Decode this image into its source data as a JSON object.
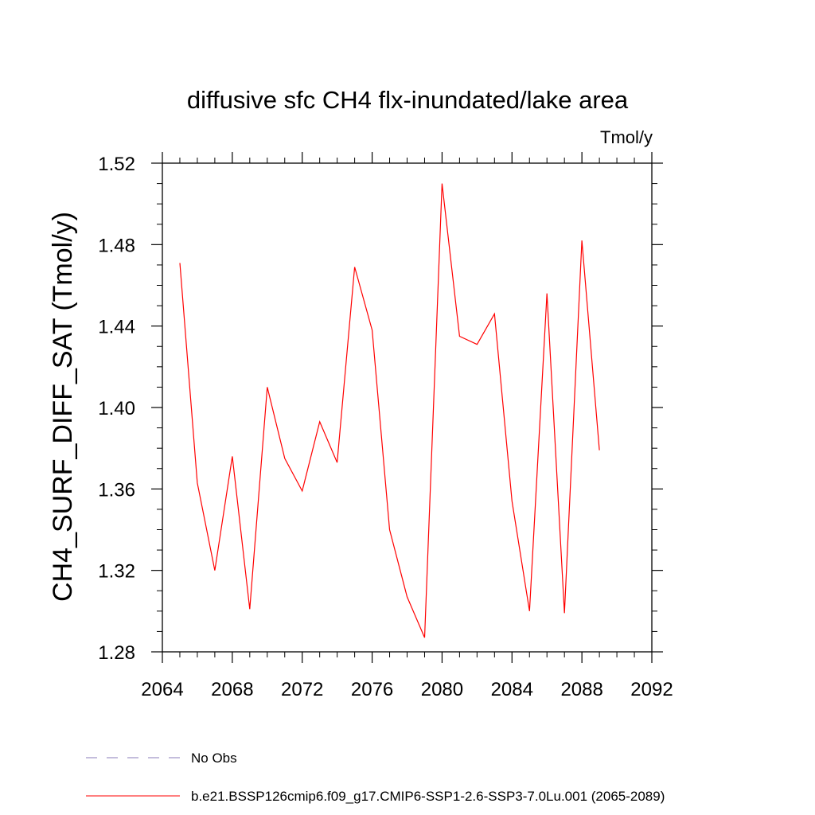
{
  "chart_data": {
    "type": "line",
    "title": "diffusive sfc CH4 flx-inundated/lake area",
    "units_label": "Tmol/y",
    "ylabel": "CH4_SURF_DIFF_SAT  (Tmol/y)",
    "xlabel": "",
    "xlim": [
      2064,
      2092
    ],
    "ylim": [
      1.28,
      1.52
    ],
    "x_ticks": [
      "2064",
      "2068",
      "2072",
      "2076",
      "2080",
      "2084",
      "2088",
      "2092"
    ],
    "y_ticks": [
      "1.28",
      "1.32",
      "1.36",
      "1.40",
      "1.44",
      "1.48",
      "1.52"
    ],
    "grid": false,
    "series": [
      {
        "name": "b.e21.BSSP126cmip6.f09_g17.CMIP6-SSP1-2.6-SSP3-7.0Lu.001 (2065-2089)",
        "color": "#ff0000",
        "x": [
          2065,
          2066,
          2067,
          2068,
          2069,
          2070,
          2071,
          2072,
          2073,
          2074,
          2075,
          2076,
          2077,
          2078,
          2079,
          2080,
          2081,
          2082,
          2083,
          2084,
          2085,
          2086,
          2087,
          2088,
          2089
        ],
        "values": [
          1.471,
          1.363,
          1.32,
          1.376,
          1.301,
          1.41,
          1.375,
          1.359,
          1.393,
          1.373,
          1.469,
          1.438,
          1.34,
          1.307,
          1.287,
          1.51,
          1.435,
          1.431,
          1.446,
          1.354,
          1.3,
          1.456,
          1.299,
          1.482,
          1.379
        ]
      }
    ],
    "legend": [
      {
        "label": "No Obs",
        "style": "dashed",
        "color": "#8a7bb8"
      },
      {
        "label": "b.e21.BSSP126cmip6.f09_g17.CMIP6-SSP1-2.6-SSP3-7.0Lu.001 (2065-2089)",
        "style": "solid",
        "color": "#ff0000"
      }
    ],
    "legend_placement": "bottom"
  }
}
